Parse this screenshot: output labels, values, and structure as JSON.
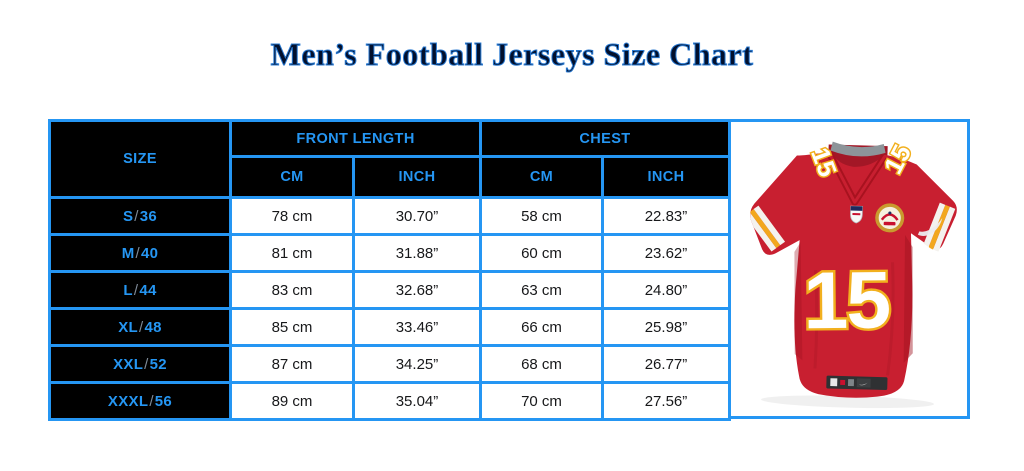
{
  "page": {
    "title": "Men’s Football Jerseys Size Chart"
  },
  "colors": {
    "accent_blue": "#2596f3",
    "header_bg": "#000000",
    "title_navy": "#02102d",
    "jersey_red": "#c81f30",
    "jersey_gold": "#f2b01e"
  },
  "table": {
    "size_header": "SIZE",
    "group_headers": {
      "front_length": "FRONT LENGTH",
      "chest": "CHEST"
    },
    "unit_headers": {
      "front_cm": "CM",
      "front_inch": "INCH",
      "chest_cm": "CM",
      "chest_inch": "INCH"
    },
    "separator": "/",
    "rows": [
      {
        "size_name": "S",
        "size_num": "36",
        "front_cm": "78 cm",
        "front_inch": "30.70”",
        "chest_cm": "58 cm",
        "chest_inch": "22.83”"
      },
      {
        "size_name": "M",
        "size_num": "40",
        "front_cm": "81 cm",
        "front_inch": "31.88”",
        "chest_cm": "60 cm",
        "chest_inch": "23.62”"
      },
      {
        "size_name": "L",
        "size_num": "44",
        "front_cm": "83 cm",
        "front_inch": "32.68”",
        "chest_cm": "63 cm",
        "chest_inch": "24.80”"
      },
      {
        "size_name": "XL",
        "size_num": "48",
        "front_cm": "85 cm",
        "front_inch": "33.46”",
        "chest_cm": "66 cm",
        "chest_inch": "25.98”"
      },
      {
        "size_name": "XXL",
        "size_num": "52",
        "front_cm": "87 cm",
        "front_inch": "34.25”",
        "chest_cm": "68 cm",
        "chest_inch": "26.77”"
      },
      {
        "size_name": "XXXL",
        "size_num": "56",
        "front_cm": "89 cm",
        "front_inch": "35.04”",
        "chest_cm": "70 cm",
        "chest_inch": "27.56”"
      }
    ]
  },
  "jersey": {
    "chest_number": "15",
    "shoulder_number_left": "15",
    "shoulder_number_right": "15"
  },
  "chart_data": {
    "type": "table",
    "title": "Men’s Football Jerseys Size Chart",
    "columns": [
      "SIZE",
      "FRONT LENGTH CM",
      "FRONT LENGTH INCH",
      "CHEST CM",
      "CHEST INCH"
    ],
    "rows": [
      [
        "S/36",
        "78 cm",
        "30.70”",
        "58 cm",
        "22.83”"
      ],
      [
        "M/40",
        "81 cm",
        "31.88”",
        "60 cm",
        "23.62”"
      ],
      [
        "L/44",
        "83 cm",
        "32.68”",
        "63 cm",
        "24.80”"
      ],
      [
        "XL/48",
        "85 cm",
        "33.46”",
        "66 cm",
        "25.98”"
      ],
      [
        "XXL/52",
        "87 cm",
        "34.25”",
        "68 cm",
        "26.77”"
      ],
      [
        "XXXL/56",
        "89 cm",
        "35.04”",
        "70 cm",
        "27.56”"
      ]
    ]
  }
}
